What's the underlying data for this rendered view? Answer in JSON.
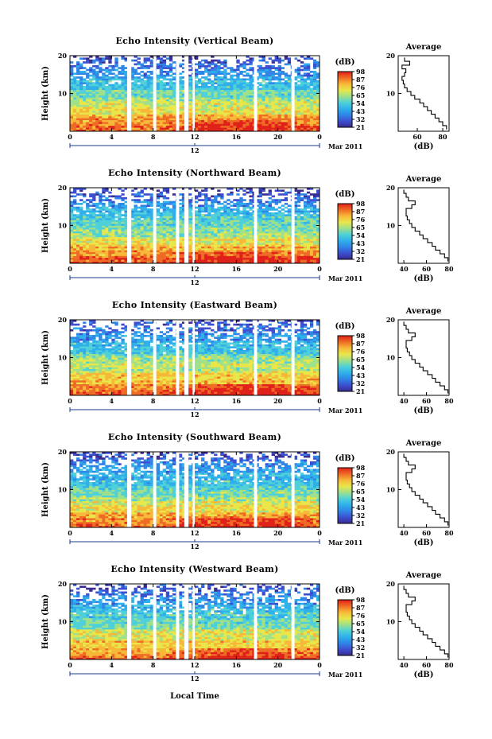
{
  "colors": {
    "colorbar": [
      "#3a2c8f",
      "#3c4fd0",
      "#2f86e6",
      "#2fb0ea",
      "#4fd0d8",
      "#9fe08a",
      "#e9e64a",
      "#f7b838",
      "#ef6b25",
      "#e0211a"
    ],
    "axis": "#000000",
    "timeline": "#1a3a8a"
  },
  "shared": {
    "y_label": "Height (km)",
    "y_ticks": [
      "20",
      "10"
    ],
    "x_ticks": [
      "0",
      "4",
      "8",
      "12",
      "16",
      "20",
      "0"
    ],
    "date_tick": "12",
    "date_label": "Mar 2011",
    "colorbar_unit": "(dB)",
    "colorbar_ticks": [
      "98",
      "87",
      "76",
      "65",
      "54",
      "43",
      "32",
      "21"
    ],
    "profile_title": "Average",
    "profile_y_ticks": [
      "20",
      "10"
    ],
    "profile_x_label": "(dB)",
    "x_axis_label": "Local Time"
  },
  "chart_data": [
    {
      "type": "heatmap",
      "title": "Echo Intensity (Vertical Beam)",
      "ylabel": "Height (km)",
      "xlim": [
        0,
        24
      ],
      "ylim": [
        0,
        20
      ],
      "colorbar_range": [
        21,
        98
      ],
      "data_gaps_hours": [
        [
          5.5,
          5.9
        ],
        [
          8.0,
          8.3
        ],
        [
          10.2,
          10.5
        ],
        [
          11.0,
          11.4
        ],
        [
          11.8,
          12.0
        ],
        [
          17.7,
          18.0
        ],
        [
          21.3,
          21.6
        ]
      ],
      "profile": {
        "title": "Average",
        "xlabel": "(dB)",
        "x_ticks": [
          "60",
          "80"
        ],
        "xlim": [
          45,
          85
        ],
        "height_km": [
          1,
          2,
          3,
          4,
          5,
          6,
          7,
          8,
          9,
          10,
          11,
          12,
          13,
          14,
          15,
          16,
          17,
          18,
          19
        ],
        "intensity_db": [
          83,
          80,
          77,
          74,
          71,
          68,
          65,
          62,
          58,
          55,
          52,
          50,
          49,
          48,
          50,
          51,
          48,
          54,
          50
        ]
      }
    },
    {
      "type": "heatmap",
      "title": "Echo Intensity (Northward Beam)",
      "ylabel": "Height (km)",
      "xlim": [
        0,
        24
      ],
      "ylim": [
        0,
        20
      ],
      "colorbar_range": [
        21,
        98
      ],
      "data_gaps_hours": [
        [
          5.5,
          5.9
        ],
        [
          8.0,
          8.3
        ],
        [
          10.2,
          10.5
        ],
        [
          11.0,
          11.4
        ],
        [
          11.8,
          12.0
        ],
        [
          17.7,
          18.0
        ],
        [
          21.3,
          21.6
        ]
      ],
      "profile": {
        "title": "Average",
        "xlabel": "(dB)",
        "x_ticks": [
          "40",
          "60",
          "80"
        ],
        "xlim": [
          35,
          80
        ],
        "height_km": [
          1,
          2,
          3,
          4,
          5,
          6,
          7,
          8,
          9,
          10,
          11,
          12,
          13,
          14,
          15,
          16,
          17,
          18,
          19
        ],
        "intensity_db": [
          79,
          76,
          72,
          68,
          65,
          61,
          57,
          54,
          50,
          47,
          45,
          43,
          42,
          42,
          47,
          50,
          44,
          42,
          40
        ]
      }
    },
    {
      "type": "heatmap",
      "title": "Echo Intensity (Eastward Beam)",
      "ylabel": "Height (km)",
      "xlim": [
        0,
        24
      ],
      "ylim": [
        0,
        20
      ],
      "colorbar_range": [
        21,
        98
      ],
      "data_gaps_hours": [
        [
          5.5,
          5.9
        ],
        [
          8.0,
          8.3
        ],
        [
          10.2,
          10.5
        ],
        [
          11.0,
          11.4
        ],
        [
          11.8,
          12.0
        ],
        [
          17.7,
          18.0
        ],
        [
          21.3,
          21.6
        ]
      ],
      "profile": {
        "title": "Average",
        "xlabel": "(dB)",
        "x_ticks": [
          "40",
          "60",
          "80"
        ],
        "xlim": [
          35,
          80
        ],
        "height_km": [
          1,
          2,
          3,
          4,
          5,
          6,
          7,
          8,
          9,
          10,
          11,
          12,
          13,
          14,
          15,
          16,
          17,
          18,
          19
        ],
        "intensity_db": [
          79,
          76,
          72,
          68,
          65,
          61,
          57,
          54,
          50,
          47,
          45,
          43,
          42,
          42,
          47,
          50,
          44,
          42,
          40
        ]
      }
    },
    {
      "type": "heatmap",
      "title": "Echo Intensity (Southward Beam)",
      "ylabel": "Height (km)",
      "xlim": [
        0,
        24
      ],
      "ylim": [
        0,
        20
      ],
      "colorbar_range": [
        21,
        98
      ],
      "data_gaps_hours": [
        [
          5.5,
          5.9
        ],
        [
          8.0,
          8.3
        ],
        [
          10.2,
          10.5
        ],
        [
          11.0,
          11.4
        ],
        [
          11.8,
          12.0
        ],
        [
          17.7,
          18.0
        ],
        [
          21.3,
          21.6
        ]
      ],
      "profile": {
        "title": "Average",
        "xlabel": "(dB)",
        "x_ticks": [
          "40",
          "60",
          "80"
        ],
        "xlim": [
          35,
          80
        ],
        "height_km": [
          1,
          2,
          3,
          4,
          5,
          6,
          7,
          8,
          9,
          10,
          11,
          12,
          13,
          14,
          15,
          16,
          17,
          18,
          19
        ],
        "intensity_db": [
          79,
          76,
          72,
          68,
          65,
          61,
          57,
          54,
          50,
          47,
          45,
          43,
          42,
          42,
          47,
          50,
          44,
          42,
          40
        ]
      }
    },
    {
      "type": "heatmap",
      "title": "Echo Intensity (Westward Beam)",
      "ylabel": "Height (km)",
      "xlim": [
        0,
        24
      ],
      "ylim": [
        0,
        20
      ],
      "colorbar_range": [
        21,
        98
      ],
      "data_gaps_hours": [
        [
          5.5,
          5.9
        ],
        [
          8.0,
          8.3
        ],
        [
          10.2,
          10.5
        ],
        [
          11.0,
          11.4
        ],
        [
          11.8,
          12.0
        ],
        [
          17.7,
          18.0
        ],
        [
          21.3,
          21.6
        ]
      ],
      "profile": {
        "title": "Average",
        "xlabel": "(dB)",
        "x_ticks": [
          "40",
          "60",
          "80"
        ],
        "xlim": [
          35,
          80
        ],
        "height_km": [
          1,
          2,
          3,
          4,
          5,
          6,
          7,
          8,
          9,
          10,
          11,
          12,
          13,
          14,
          15,
          16,
          17,
          18,
          19
        ],
        "intensity_db": [
          79,
          76,
          72,
          68,
          65,
          61,
          57,
          54,
          50,
          47,
          45,
          43,
          42,
          42,
          47,
          50,
          44,
          42,
          40
        ]
      }
    }
  ]
}
